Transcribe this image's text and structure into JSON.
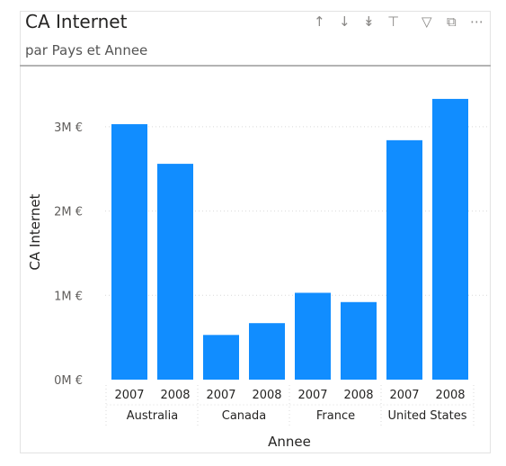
{
  "header": {
    "title": "CA Internet",
    "subtitle": "par Pays et Annee"
  },
  "toolbar": {
    "icons": [
      "arrow-up-icon",
      "arrow-down-icon",
      "double-arrow-down-icon",
      "expand-hierarchy-icon",
      "filter-icon",
      "focus-mode-icon",
      "more-options-icon"
    ]
  },
  "colors": {
    "bar": "#118dff",
    "grid": "#d9d9d9",
    "text": "#252423",
    "muted": "#605e5c"
  },
  "chart_data": {
    "type": "bar",
    "title": "CA Internet",
    "subtitle": "par Pays et Annee",
    "xlabel": "Annee",
    "ylabel": "CA Internet",
    "ylim": [
      0,
      3500000
    ],
    "yticks": [
      0,
      1000000,
      2000000,
      3000000
    ],
    "ytick_labels": [
      "0M €",
      "1M €",
      "2M €",
      "3M €"
    ],
    "grid": true,
    "groups": [
      {
        "name": "Australia",
        "categories": [
          "2007",
          "2008"
        ],
        "values": [
          3030000,
          2560000
        ]
      },
      {
        "name": "Canada",
        "categories": [
          "2007",
          "2008"
        ],
        "values": [
          530000,
          670000
        ]
      },
      {
        "name": "France",
        "categories": [
          "2007",
          "2008"
        ],
        "values": [
          1030000,
          920000
        ]
      },
      {
        "name": "United States",
        "categories": [
          "2007",
          "2008"
        ],
        "values": [
          2840000,
          3330000
        ]
      }
    ]
  }
}
